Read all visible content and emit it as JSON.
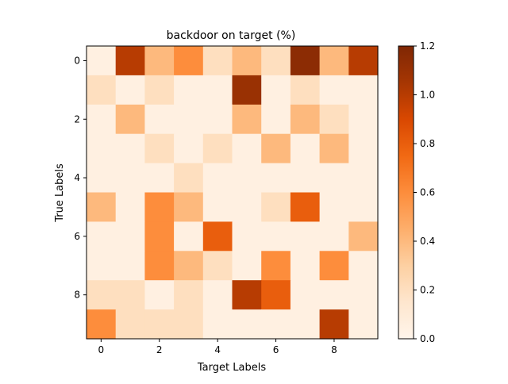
{
  "chart_data": {
    "type": "heatmap",
    "title": "backdoor on target (%)",
    "xlabel": "Target Labels",
    "ylabel": "True Labels",
    "x_tick_labels": [
      "0",
      "2",
      "4",
      "6",
      "8"
    ],
    "y_tick_labels": [
      "0",
      "2",
      "4",
      "6",
      "8"
    ],
    "x_tick_values": [
      0,
      2,
      4,
      6,
      8
    ],
    "y_tick_values": [
      0,
      2,
      4,
      6,
      8
    ],
    "colorbar": {
      "range": [
        0,
        1.2
      ],
      "tick_values": [
        0.0,
        0.2,
        0.4,
        0.6,
        0.8,
        1.0,
        1.2
      ],
      "tick_labels": [
        "0.0",
        "0.2",
        "0.4",
        "0.6",
        "0.8",
        "1.0",
        "1.2"
      ]
    },
    "colormap": "Oranges",
    "rows": 10,
    "cols": 10,
    "values": [
      [
        0.05,
        1.0,
        0.4,
        0.6,
        0.2,
        0.4,
        0.2,
        1.15,
        0.4,
        1.0
      ],
      [
        0.2,
        0.05,
        0.2,
        0.05,
        0.05,
        1.1,
        0.05,
        0.2,
        0.05,
        0.05
      ],
      [
        0.05,
        0.4,
        0.05,
        0.05,
        0.05,
        0.4,
        0.05,
        0.4,
        0.2,
        0.05
      ],
      [
        0.05,
        0.05,
        0.2,
        0.05,
        0.2,
        0.05,
        0.4,
        0.05,
        0.4,
        0.05
      ],
      [
        0.05,
        0.05,
        0.05,
        0.2,
        0.05,
        0.05,
        0.05,
        0.05,
        0.05,
        0.05
      ],
      [
        0.4,
        0.05,
        0.6,
        0.4,
        0.05,
        0.05,
        0.2,
        0.8,
        0.05,
        0.05
      ],
      [
        0.05,
        0.05,
        0.6,
        0.05,
        0.8,
        0.05,
        0.05,
        0.05,
        0.05,
        0.4
      ],
      [
        0.05,
        0.05,
        0.6,
        0.4,
        0.2,
        0.05,
        0.6,
        0.05,
        0.6,
        0.05
      ],
      [
        0.2,
        0.2,
        0.05,
        0.2,
        0.05,
        1.0,
        0.8,
        0.05,
        0.05,
        0.05
      ],
      [
        0.6,
        0.2,
        0.2,
        0.2,
        0.05,
        0.05,
        0.05,
        0.05,
        1.0,
        0.05
      ]
    ]
  }
}
